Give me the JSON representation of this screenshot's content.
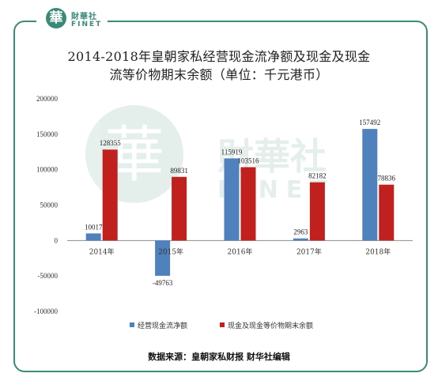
{
  "logo": {
    "seal": "華",
    "name_cn": "財華社",
    "name_en": "FINET"
  },
  "watermark": {
    "seal": "華",
    "name_cn": "財華社",
    "name_en": "FINET"
  },
  "footer": {
    "source": "数据来源：皇朝家私财报    财华社编辑"
  },
  "colors": {
    "frame": "#3a8a77",
    "series1": "#4f81bd",
    "series2": "#c0201e"
  },
  "chart_data": {
    "type": "bar",
    "title": [
      "2014-2018年皇朝家私经营现金流净额及现金及现金",
      "流等价物期末余额（单位：千元港币）"
    ],
    "categories": [
      "2014年",
      "2015年",
      "2016年",
      "2017年",
      "2018年"
    ],
    "series": [
      {
        "name": "经营现金流净额",
        "values": [
          10017,
          -49763,
          115919,
          2963,
          157492
        ]
      },
      {
        "name": "现金及现金等价物期末余额",
        "values": [
          128355,
          89831,
          103516,
          82182,
          78836
        ]
      }
    ],
    "ylim": [
      -100000,
      200000
    ],
    "yticks": [
      "200000",
      "150000",
      "100000",
      "50000",
      "0",
      "-50000",
      "-100000"
    ],
    "ytick_values": [
      200000,
      150000,
      100000,
      50000,
      0,
      -50000,
      -100000
    ],
    "data_labels": [
      [
        "10017",
        "-49763",
        "115919",
        "2963",
        "157492"
      ],
      [
        "128355",
        "89831",
        "103516",
        "82182",
        "78836"
      ]
    ],
    "grid": false,
    "legend_position": "bottom"
  }
}
